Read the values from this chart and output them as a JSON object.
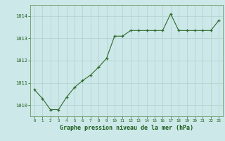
{
  "x": [
    0,
    1,
    2,
    3,
    4,
    5,
    6,
    7,
    8,
    9,
    10,
    11,
    12,
    13,
    14,
    15,
    16,
    17,
    18,
    19,
    20,
    21,
    22,
    23
  ],
  "y": [
    1010.7,
    1010.3,
    1009.8,
    1009.8,
    1010.35,
    1010.8,
    1011.1,
    1011.35,
    1011.7,
    1012.1,
    1013.1,
    1013.1,
    1013.35,
    1013.35,
    1013.35,
    1013.35,
    1013.35,
    1014.1,
    1013.35,
    1013.35,
    1013.35,
    1013.35,
    1013.35,
    1013.8
  ],
  "line_color": "#2d6a2d",
  "marker_color": "#2d6a2d",
  "bg_color": "#cde8e8",
  "grid_color": "#b0d0d0",
  "xlabel": "Graphe pression niveau de la mer (hPa)",
  "xlabel_color": "#1a5c1a",
  "ylabel_ticks": [
    1010,
    1011,
    1012,
    1013,
    1014
  ],
  "xlim": [
    -0.5,
    23.5
  ],
  "ylim": [
    1009.5,
    1014.5
  ],
  "tick_color": "#1a5c1a",
  "axis_color": "#6a9a6a"
}
